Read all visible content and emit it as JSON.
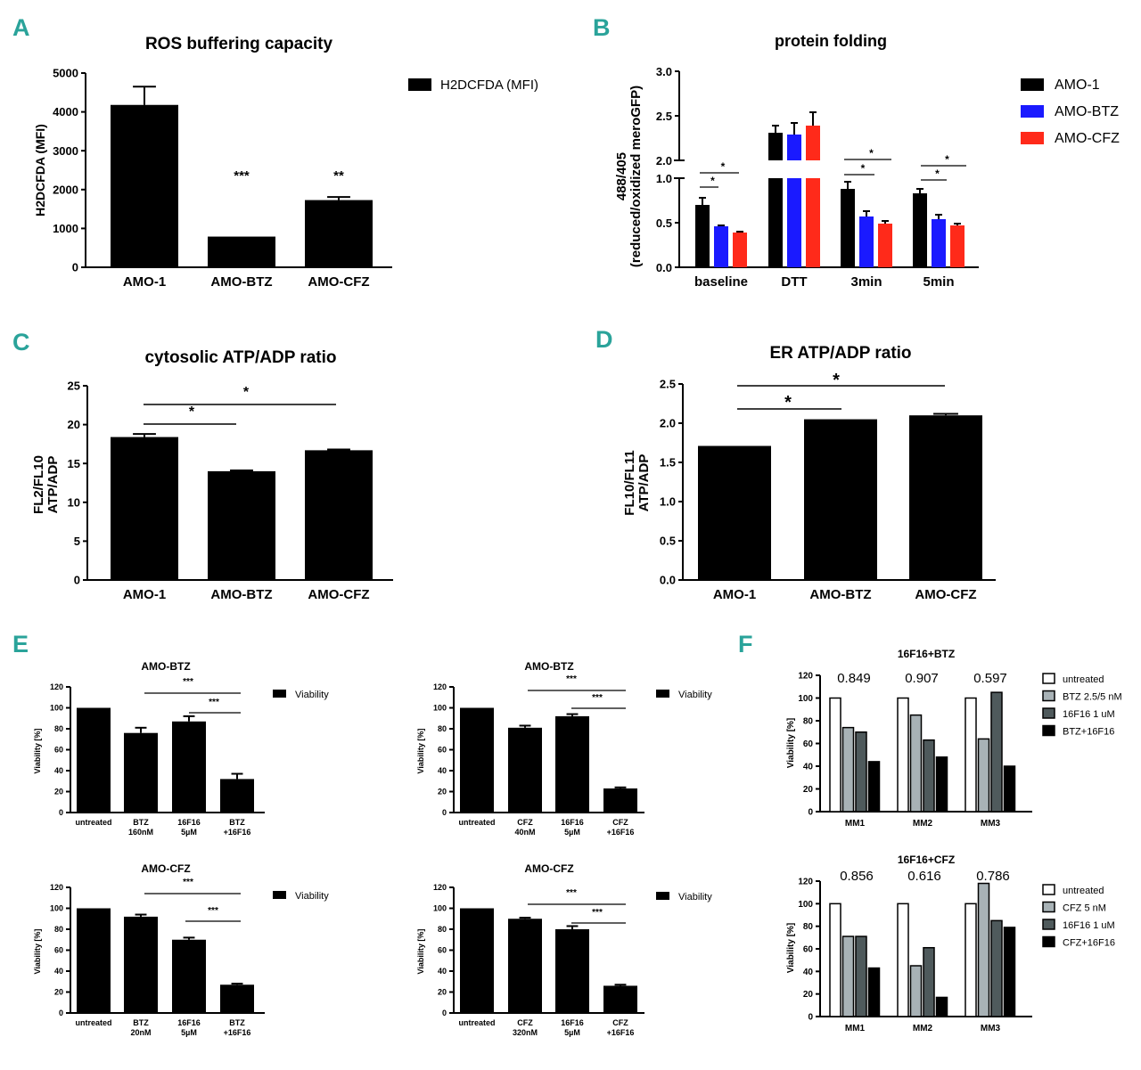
{
  "panel_letters": {
    "A": "A",
    "B": "B",
    "C": "C",
    "D": "D",
    "E": "E",
    "F": "F"
  },
  "colors": {
    "accent": "#2aa39a",
    "black": "#000000",
    "blue": "#1a1aff",
    "red": "#ff2a1a",
    "grey_light": "#a8b2b6",
    "grey_dark": "#4f5a5c",
    "white": "#ffffff"
  },
  "chart_data": [
    {
      "id": "A",
      "type": "bar",
      "title": "ROS buffering capacity",
      "ylabel": [
        "H2DCFDA (MFI)"
      ],
      "categories": [
        "AMO-1",
        "AMO-BTZ",
        "AMO-CFZ"
      ],
      "values": [
        4180,
        790,
        1730
      ],
      "errors": [
        470,
        0,
        80
      ],
      "ylim": [
        0,
        5000
      ],
      "yticks": [
        0,
        1000,
        2000,
        3000,
        4000,
        5000
      ],
      "significance": [
        "",
        "***",
        "**"
      ],
      "legend": [
        "H2DCFDA (MFI)"
      ]
    },
    {
      "id": "B",
      "type": "bar",
      "title": "protein folding",
      "ylabel": [
        "488/405",
        "(reduced/oxidized meroGFP)"
      ],
      "categories": [
        "baseline",
        "DTT",
        "3min",
        "5min"
      ],
      "series": [
        {
          "name": "AMO-1",
          "values": [
            0.7,
            2.31,
            0.88,
            0.83
          ],
          "errors": [
            0.08,
            0.08,
            0.08,
            0.05
          ]
        },
        {
          "name": "AMO-BTZ",
          "values": [
            0.46,
            2.29,
            0.57,
            0.54
          ],
          "errors": [
            0.01,
            0.13,
            0.06,
            0.05
          ]
        },
        {
          "name": "AMO-CFZ",
          "values": [
            0.39,
            2.39,
            0.49,
            0.47
          ],
          "errors": [
            0.01,
            0.15,
            0.03,
            0.02
          ]
        }
      ],
      "axis_break": [
        1.0,
        2.0
      ],
      "ylim": [
        0,
        3.0
      ],
      "yticks": [
        "0.0",
        "0.5",
        "1.0",
        "2.0",
        "2.5",
        "3.0"
      ],
      "significance": [
        "*",
        "*"
      ],
      "legend": [
        "AMO-1",
        "AMO-BTZ",
        "AMO-CFZ"
      ]
    },
    {
      "id": "C",
      "type": "bar",
      "title": "cytosolic ATP/ADP ratio",
      "ylabel": [
        "FL2/FL10",
        "ATP/ADP"
      ],
      "categories": [
        "AMO-1",
        "AMO-BTZ",
        "AMO-CFZ"
      ],
      "values": [
        18.4,
        14.0,
        16.7
      ],
      "errors": [
        0.4,
        0.1,
        0.1
      ],
      "ylim": [
        0,
        25
      ],
      "yticks": [
        0,
        5,
        10,
        15,
        20,
        25
      ],
      "significance": [
        "*",
        "*"
      ]
    },
    {
      "id": "D",
      "type": "bar",
      "title": "ER ATP/ADP ratio",
      "ylabel": [
        "FL10/FL11",
        "ATP/ADP"
      ],
      "categories": [
        "AMO-1",
        "AMO-BTZ",
        "AMO-CFZ"
      ],
      "values": [
        1.71,
        2.05,
        2.1
      ],
      "errors": [
        0,
        0,
        0.02
      ],
      "ylim": [
        0,
        2.5
      ],
      "yticks": [
        "0.0",
        "0.5",
        "1.0",
        "1.5",
        "2.0",
        "2.5"
      ],
      "significance": [
        "*",
        "*"
      ]
    },
    {
      "id": "E1",
      "type": "bar",
      "title": "AMO-BTZ",
      "ylabel": [
        "Viability [%]"
      ],
      "categories": [
        [
          "untreated"
        ],
        [
          "BTZ",
          "160nM"
        ],
        [
          "16F16",
          "5µM"
        ],
        [
          "BTZ",
          "+16F16"
        ]
      ],
      "values": [
        100,
        76,
        87,
        32
      ],
      "errors": [
        0,
        5,
        5,
        5
      ],
      "ylim": [
        0,
        120
      ],
      "yticks": [
        0,
        20,
        40,
        60,
        80,
        100,
        120
      ],
      "significance": [
        "***",
        "***"
      ],
      "legend": [
        "Viability"
      ]
    },
    {
      "id": "E2",
      "type": "bar",
      "title": "AMO-BTZ",
      "ylabel": [
        "Viability [%]"
      ],
      "categories": [
        [
          "untreated"
        ],
        [
          "CFZ",
          "40nM"
        ],
        [
          "16F16",
          "5µM"
        ],
        [
          "CFZ",
          "+16F16"
        ]
      ],
      "values": [
        100,
        81,
        92,
        23
      ],
      "errors": [
        0,
        2,
        2,
        1
      ],
      "ylim": [
        0,
        120
      ],
      "yticks": [
        0,
        20,
        40,
        60,
        80,
        100,
        120
      ],
      "significance": [
        "***",
        "***"
      ],
      "legend": [
        "Viability"
      ]
    },
    {
      "id": "E3",
      "type": "bar",
      "title": "AMO-CFZ",
      "ylabel": [
        "Viability [%]"
      ],
      "categories": [
        [
          "untreated"
        ],
        [
          "BTZ",
          "20nM"
        ],
        [
          "16F16",
          "5µM"
        ],
        [
          "BTZ",
          "+16F16"
        ]
      ],
      "values": [
        100,
        92,
        70,
        27
      ],
      "errors": [
        0,
        2,
        2,
        1
      ],
      "ylim": [
        0,
        120
      ],
      "yticks": [
        0,
        20,
        40,
        60,
        80,
        100,
        120
      ],
      "significance": [
        "***",
        "***"
      ],
      "legend": [
        "Viability"
      ]
    },
    {
      "id": "E4",
      "type": "bar",
      "title": "AMO-CFZ",
      "ylabel": [
        "Viability [%]"
      ],
      "categories": [
        [
          "untreated"
        ],
        [
          "CFZ",
          "320nM"
        ],
        [
          "16F16",
          "5µM"
        ],
        [
          "CFZ",
          "+16F16"
        ]
      ],
      "values": [
        100,
        90,
        80,
        26
      ],
      "errors": [
        0,
        1,
        3,
        1
      ],
      "ylim": [
        0,
        120
      ],
      "yticks": [
        0,
        20,
        40,
        60,
        80,
        100,
        120
      ],
      "significance": [
        "***",
        "***"
      ],
      "legend": [
        "Viability"
      ]
    },
    {
      "id": "F1",
      "type": "bar",
      "title": "16F16+BTZ",
      "ylabel": [
        "Viability [%]"
      ],
      "categories": [
        "MM1",
        "MM2",
        "MM3"
      ],
      "series": [
        {
          "name": "untreated",
          "values": [
            100,
            100,
            100
          ]
        },
        {
          "name": "BTZ 2.5/5 nM",
          "values": [
            74,
            85,
            64
          ]
        },
        {
          "name": "16F16 1 uM",
          "values": [
            70,
            63,
            105
          ]
        },
        {
          "name": "BTZ+16F16",
          "values": [
            44,
            48,
            40
          ]
        }
      ],
      "annotations": [
        "0.849",
        "0.907",
        "0.597"
      ],
      "ylim": [
        0,
        120
      ],
      "yticks": [
        0,
        20,
        40,
        60,
        80,
        100,
        120
      ],
      "legend": [
        "untreated",
        "BTZ 2.5/5 nM",
        "16F16 1 uM",
        "BTZ+16F16"
      ]
    },
    {
      "id": "F2",
      "type": "bar",
      "title": "16F16+CFZ",
      "ylabel": [
        "Viability [%]"
      ],
      "categories": [
        "MM1",
        "MM2",
        "MM3"
      ],
      "series": [
        {
          "name": "untreated",
          "values": [
            100,
            100,
            100
          ]
        },
        {
          "name": "CFZ 5 nM",
          "values": [
            71,
            45,
            118
          ]
        },
        {
          "name": "16F16 1 uM",
          "values": [
            71,
            61,
            85
          ]
        },
        {
          "name": "CFZ+16F16",
          "values": [
            43,
            17,
            79
          ]
        }
      ],
      "annotations": [
        "0.856",
        "0.616",
        "0.786"
      ],
      "ylim": [
        0,
        120
      ],
      "yticks": [
        0,
        20,
        40,
        60,
        80,
        100,
        120
      ],
      "legend": [
        "untreated",
        "CFZ 5 nM",
        "16F16 1 uM",
        "CFZ+16F16"
      ]
    }
  ]
}
